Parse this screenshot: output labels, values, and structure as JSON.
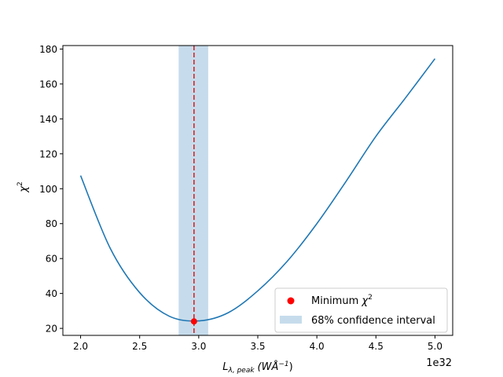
{
  "chart_data": {
    "type": "line",
    "xlabel": "L_{λ, peak} (WÅ⁻¹)",
    "xlabel_main": "L",
    "xlabel_sub": "λ, peak",
    "xlabel_units": "(WÅ",
    "xlabel_units_sup": "−1",
    "xlabel_units_close": ")",
    "ylabel": "χ²",
    "ylabel_main": "χ",
    "ylabel_sup": "2",
    "x_offset_text": "1e32",
    "x_scale": 1e+32,
    "xlim": [
      1.85,
      5.15
    ],
    "ylim": [
      16,
      182
    ],
    "xticks": [
      2.0,
      2.5,
      3.0,
      3.5,
      4.0,
      4.5,
      5.0
    ],
    "xtick_labels": [
      "2.0",
      "2.5",
      "3.0",
      "3.5",
      "4.0",
      "4.5",
      "5.0"
    ],
    "yticks": [
      20,
      40,
      60,
      80,
      100,
      120,
      140,
      160,
      180
    ],
    "ytick_labels": [
      "20",
      "40",
      "60",
      "80",
      "100",
      "120",
      "140",
      "160",
      "180"
    ],
    "grid": false,
    "legend_position": "bottom-right",
    "series": [
      {
        "kind": "curve",
        "color": "#1f77b4",
        "x": [
          2.0,
          2.25,
          2.5,
          2.75,
          3.0,
          3.25,
          3.5,
          3.75,
          4.0,
          4.25,
          4.5,
          4.75,
          5.0
        ],
        "y": [
          107.5,
          66.0,
          40.5,
          27.0,
          24.3,
          29.0,
          41.5,
          58.5,
          80.0,
          104.5,
          130.0,
          152.0,
          174.5
        ]
      },
      {
        "name": "68% confidence interval",
        "kind": "band",
        "color": "#c6dcec",
        "x_range": [
          2.83,
          3.08
        ]
      },
      {
        "name": "Minimum χ²",
        "kind": "point",
        "color": "#ff0000",
        "x": 2.96,
        "y": 24.0
      },
      {
        "kind": "vline",
        "color": "#d62728",
        "style": "dashed",
        "x": 2.96
      }
    ],
    "legend": [
      {
        "label_main": "Minimum ",
        "label_symbol": "χ",
        "label_sup": "2",
        "marker": "point",
        "color": "#ff0000"
      },
      {
        "label_main": "68% confidence interval",
        "marker": "band",
        "color": "#c6dcec"
      }
    ]
  }
}
